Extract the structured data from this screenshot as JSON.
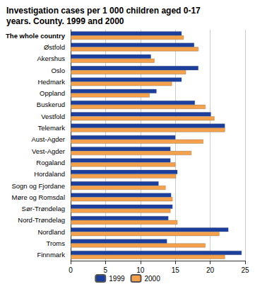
{
  "chart_data": {
    "type": "bar",
    "orientation": "horizontal",
    "title": "Investigation cases per 1 000 children aged 0-17 years. County. 1999 and 2000",
    "categories": [
      "The whole country",
      "Østfold",
      "Akershus",
      "Oslo",
      "Hedmark",
      "Oppland",
      "Buskerud",
      "Vestfold",
      "Telemark",
      "Aust-Agder",
      "Vest-Agder",
      "Rogaland",
      "Hordaland",
      "Sogn og Fjordane",
      "Møre og Romsdal",
      "Sør-Trøndelag",
      "Nord-Trøndelag",
      "Nordland",
      "Troms",
      "Finnmark"
    ],
    "series": [
      {
        "name": "1999",
        "color": "#1c3f9e",
        "values": [
          15.9,
          17.7,
          11.5,
          18.3,
          15.9,
          12.3,
          17.8,
          20.1,
          22.1,
          15.0,
          14.3,
          14.3,
          15.3,
          12.6,
          14.4,
          14.6,
          14.0,
          22.6,
          13.8,
          24.5
        ]
      },
      {
        "name": "2000",
        "color": "#f5a04a",
        "values": [
          16.2,
          18.3,
          12.0,
          16.5,
          14.5,
          11.3,
          19.3,
          20.6,
          22.1,
          19.0,
          17.3,
          15.0,
          15.1,
          13.6,
          14.6,
          14.3,
          15.3,
          21.3,
          19.3,
          22.1
        ]
      }
    ],
    "xlim": [
      0,
      25
    ],
    "xticks": [
      0,
      5,
      10,
      15,
      20,
      25
    ],
    "grid": true,
    "legend": "bottom"
  }
}
